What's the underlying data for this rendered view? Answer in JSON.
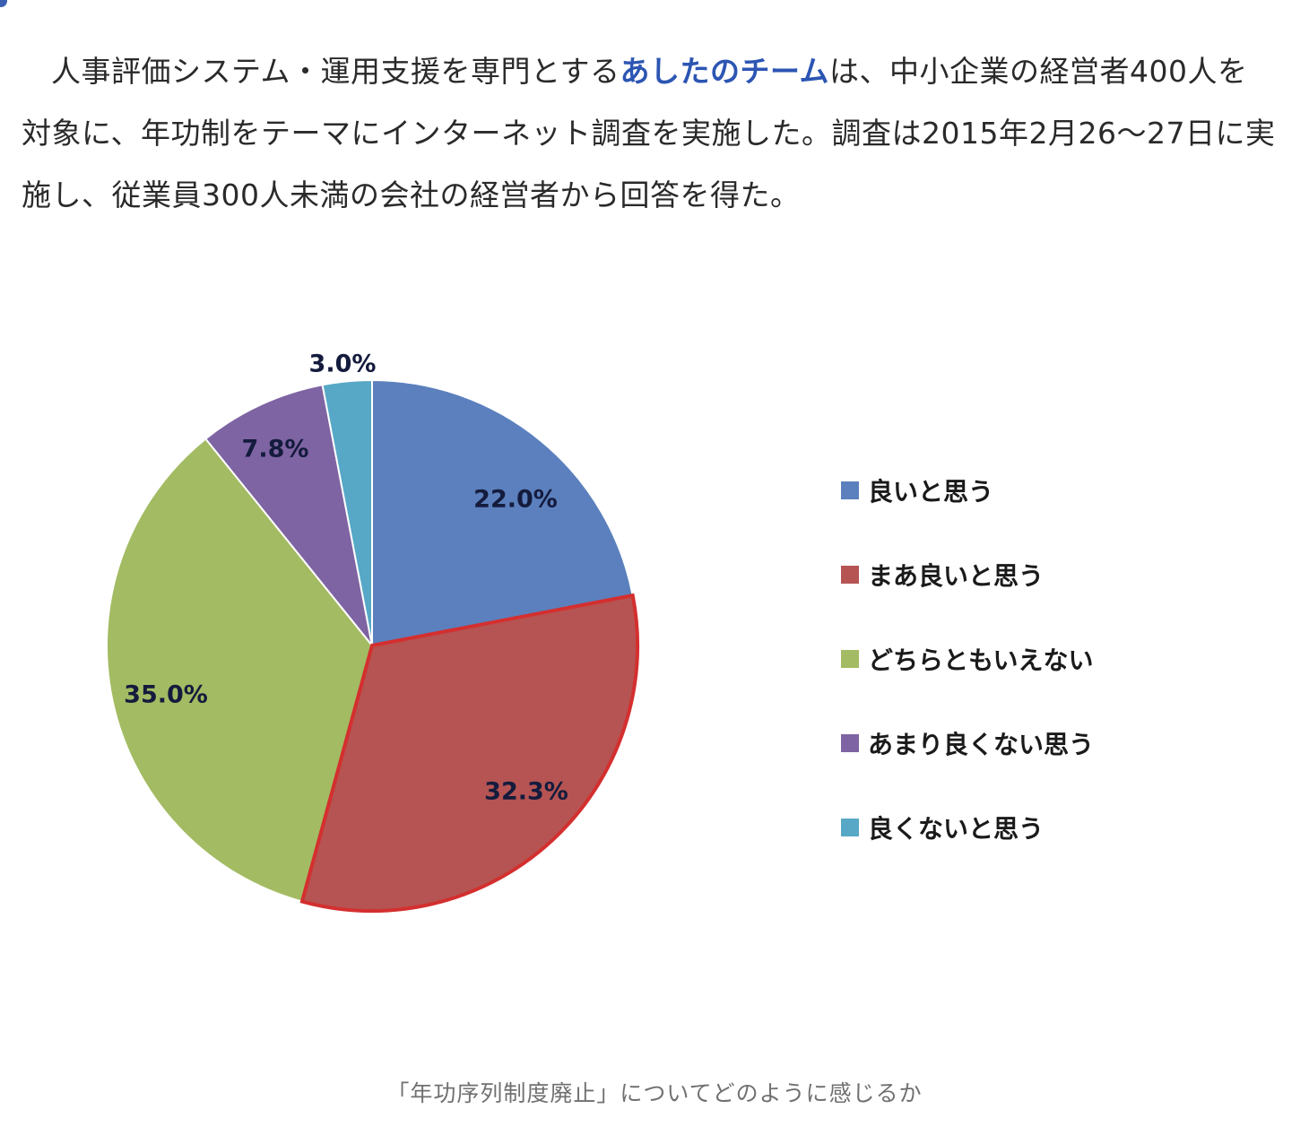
{
  "article": {
    "text_before": "人事評価システム・運用支援を専門とする",
    "link_text": "あしたのチーム",
    "text_after": "は、中小企業の経営者400人を対象に、年功制をテーマにインターネット調査を実施した。調査は2015年2月26〜27日に実施し、従業員300人未満の会社の経営者から回答を得た。"
  },
  "chart_data": {
    "type": "pie",
    "categories": [
      "良いと思う",
      "まあ良いと思う",
      "どちらともいえない",
      "あまり良くない思う",
      "良くないと思う"
    ],
    "values": [
      22.0,
      32.3,
      35.0,
      7.8,
      3.0
    ],
    "labels": [
      "22.0%",
      "32.3%",
      "35.0%",
      "7.8%",
      "3.0%"
    ],
    "colors": [
      "#5b80bd",
      "#b55452",
      "#a3bb62",
      "#7e64a2",
      "#56a8c6"
    ],
    "highlight_index": 1,
    "highlight_color": "#d42f2f",
    "start_angle_deg": 0,
    "direction": "clockwise",
    "legend_placement": "right"
  },
  "caption": "「年功序列制度廃止」についてどのように感じるか"
}
